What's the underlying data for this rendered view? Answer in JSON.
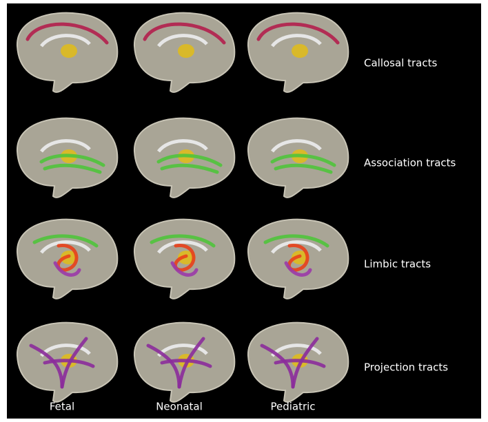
{
  "figure": {
    "rows": [
      {
        "label": "Callosal tracts"
      },
      {
        "label": "Association tracts"
      },
      {
        "label": "Limbic tracts"
      },
      {
        "label": "Projection tracts"
      }
    ],
    "columns": [
      {
        "label": "Fetal"
      },
      {
        "label": "Neonatal"
      },
      {
        "label": "Pediatric"
      }
    ]
  }
}
